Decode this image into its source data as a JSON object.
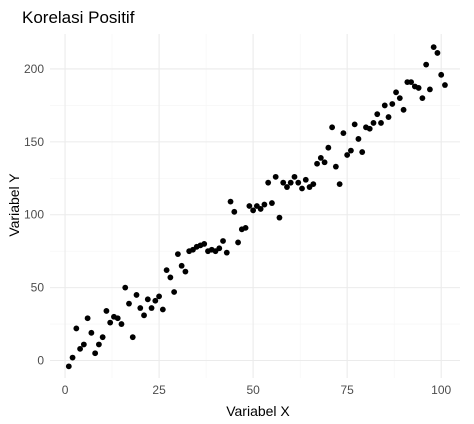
{
  "chart_data": {
    "type": "scatter",
    "title": "Korelasi Positif",
    "xlabel": "Variabel X",
    "ylabel": "Variabel Y",
    "xlim": [
      -4,
      105
    ],
    "ylim": [
      -12,
      224
    ],
    "xticks": [
      0,
      25,
      50,
      75,
      100
    ],
    "yticks": [
      0,
      50,
      100,
      150,
      200
    ],
    "grid": true,
    "point_color": "#000000",
    "points": [
      [
        1,
        -4
      ],
      [
        2,
        2
      ],
      [
        3,
        22
      ],
      [
        4,
        8
      ],
      [
        5,
        11
      ],
      [
        6,
        29
      ],
      [
        7,
        19
      ],
      [
        8,
        5
      ],
      [
        9,
        11
      ],
      [
        10,
        16
      ],
      [
        11,
        34
      ],
      [
        12,
        26
      ],
      [
        13,
        30
      ],
      [
        14,
        29
      ],
      [
        15,
        25
      ],
      [
        16,
        50
      ],
      [
        17,
        39
      ],
      [
        18,
        16
      ],
      [
        19,
        45
      ],
      [
        20,
        36
      ],
      [
        21,
        31
      ],
      [
        22,
        42
      ],
      [
        23,
        36
      ],
      [
        24,
        41
      ],
      [
        25,
        44
      ],
      [
        26,
        35
      ],
      [
        27,
        62
      ],
      [
        28,
        57
      ],
      [
        29,
        47
      ],
      [
        30,
        73
      ],
      [
        31,
        65
      ],
      [
        32,
        61
      ],
      [
        33,
        75
      ],
      [
        34,
        76
      ],
      [
        35,
        78
      ],
      [
        36,
        79
      ],
      [
        37,
        80
      ],
      [
        38,
        75
      ],
      [
        39,
        76
      ],
      [
        40,
        75
      ],
      [
        41,
        77
      ],
      [
        42,
        82
      ],
      [
        43,
        74
      ],
      [
        44,
        109
      ],
      [
        45,
        102
      ],
      [
        46,
        81
      ],
      [
        47,
        90
      ],
      [
        48,
        91
      ],
      [
        49,
        106
      ],
      [
        50,
        103
      ],
      [
        51,
        106
      ],
      [
        52,
        104
      ],
      [
        53,
        107
      ],
      [
        54,
        122
      ],
      [
        55,
        108
      ],
      [
        56,
        126
      ],
      [
        57,
        98
      ],
      [
        58,
        122
      ],
      [
        59,
        119
      ],
      [
        60,
        122
      ],
      [
        61,
        126
      ],
      [
        62,
        122
      ],
      [
        63,
        118
      ],
      [
        64,
        124
      ],
      [
        65,
        119
      ],
      [
        66,
        121
      ],
      [
        67,
        135
      ],
      [
        68,
        139
      ],
      [
        69,
        136
      ],
      [
        70,
        146
      ],
      [
        71,
        160
      ],
      [
        72,
        133
      ],
      [
        73,
        121
      ],
      [
        74,
        156
      ],
      [
        75,
        141
      ],
      [
        76,
        144
      ],
      [
        77,
        162
      ],
      [
        78,
        152
      ],
      [
        79,
        143
      ],
      [
        80,
        160
      ],
      [
        81,
        159
      ],
      [
        82,
        163
      ],
      [
        83,
        169
      ],
      [
        84,
        163
      ],
      [
        85,
        175
      ],
      [
        86,
        167
      ],
      [
        87,
        176
      ],
      [
        88,
        184
      ],
      [
        89,
        180
      ],
      [
        90,
        172
      ],
      [
        91,
        191
      ],
      [
        92,
        191
      ],
      [
        93,
        188
      ],
      [
        94,
        187
      ],
      [
        95,
        180
      ],
      [
        96,
        203
      ],
      [
        97,
        186
      ],
      [
        98,
        215
      ],
      [
        99,
        211
      ],
      [
        100,
        196
      ],
      [
        101,
        189
      ]
    ]
  }
}
